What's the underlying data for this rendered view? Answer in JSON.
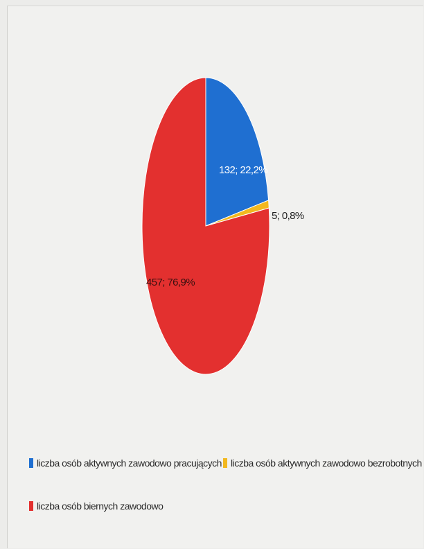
{
  "chart_data": {
    "type": "pie",
    "slices": [
      {
        "name": "liczba osób aktywnych zawodowo pracujących",
        "value": 132,
        "label": "132; 22,2%",
        "color": "#1f6fd1"
      },
      {
        "name": "liczba osób aktywnych zawodowo bezrobotnych",
        "value": 5,
        "label": "5; 0,8%",
        "color": "#f2b81f"
      },
      {
        "name": "liczba osób biernych zawodowo",
        "value": 457,
        "label": "457; 76,9%",
        "color": "#e3302f"
      }
    ],
    "legend_placement": "bottom"
  },
  "legend": {
    "items": [
      {
        "label": "liczba osób aktywnych zawodowo pracujących",
        "color": "#1f6fd1"
      },
      {
        "label": "liczba osób aktywnych zawodowo bezrobotnych",
        "color": "#f2b81f"
      },
      {
        "label": "liczba osób biernych zawodowo",
        "color": "#e3302f"
      }
    ]
  }
}
